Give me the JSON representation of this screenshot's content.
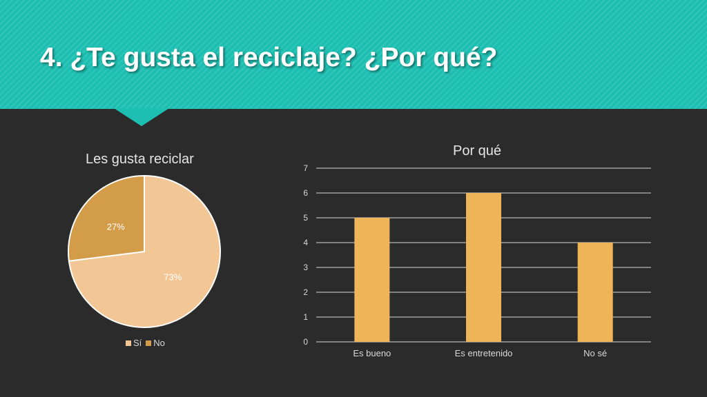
{
  "slide": {
    "title": "4. ¿Te gusta el reciclaje? ¿Por qué?",
    "accent_color": "#1cbfb1",
    "background_color": "#2b2b2b"
  },
  "chart_data": [
    {
      "type": "pie",
      "title": "Les gusta reciclar",
      "categories": [
        "Sí",
        "No"
      ],
      "values": [
        73,
        27
      ],
      "labels": [
        "73%",
        "27%"
      ],
      "colors": [
        "#f2c795",
        "#d39c48"
      ],
      "legend_position": "bottom"
    },
    {
      "type": "bar",
      "title": "Por qué",
      "categories": [
        "Es bueno",
        "Es entretenido",
        "No sé"
      ],
      "values": [
        5,
        6,
        4
      ],
      "ylim": [
        0,
        7
      ],
      "yticks": [
        "0",
        "1",
        "2",
        "3",
        "4",
        "5",
        "6",
        "7"
      ],
      "grid": true,
      "color": "#eeb457"
    }
  ]
}
